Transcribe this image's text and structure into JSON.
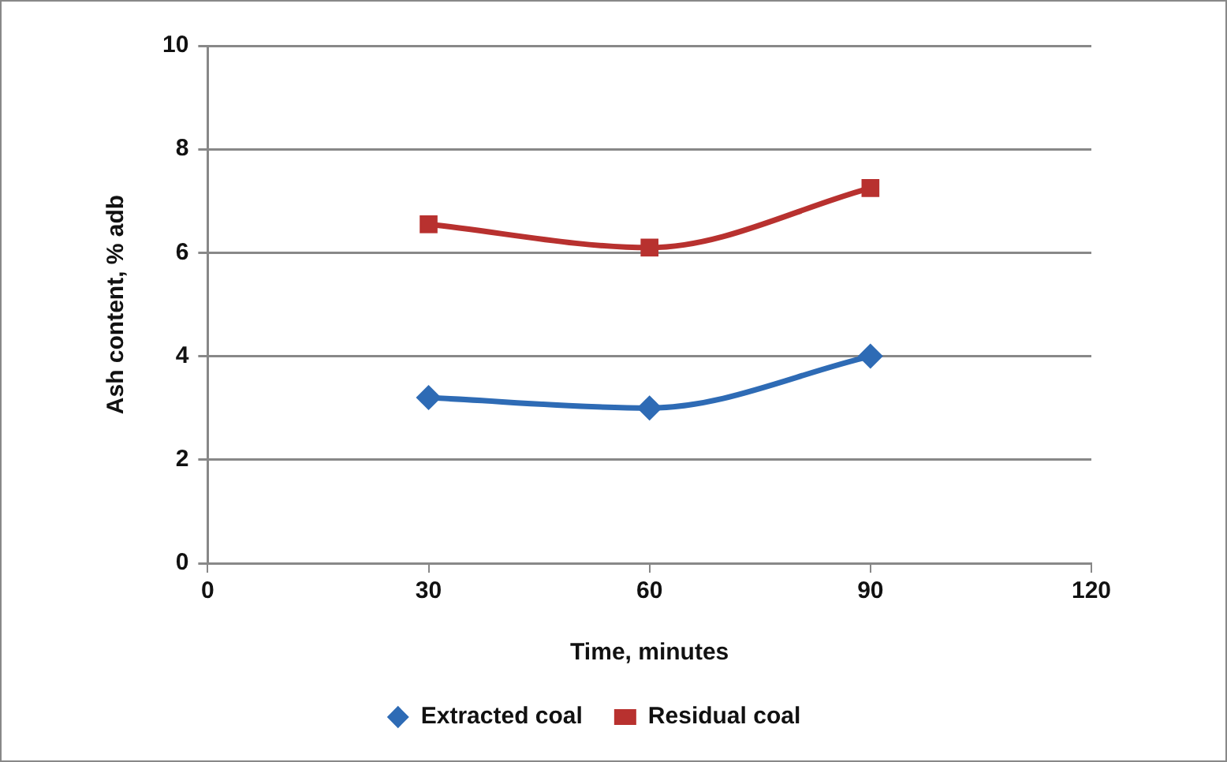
{
  "chart_data": {
    "type": "line",
    "xlabel": "Time, minutes",
    "ylabel": "Ash content, % adb",
    "x": [
      30,
      60,
      90
    ],
    "series": [
      {
        "name": "Extracted coal",
        "color": "#2e6bb5",
        "marker": "diamond",
        "values": [
          3.2,
          3.0,
          4.0
        ]
      },
      {
        "name": "Residual coal",
        "color": "#b8312f",
        "marker": "square",
        "values": [
          6.55,
          6.1,
          7.25
        ]
      }
    ],
    "xlim": [
      0,
      120
    ],
    "xticks": [
      0,
      30,
      60,
      90,
      120
    ],
    "ylim": [
      0,
      10
    ],
    "yticks": [
      0,
      2,
      4,
      6,
      8,
      10
    ],
    "grid": "y",
    "legend": "bottom"
  }
}
